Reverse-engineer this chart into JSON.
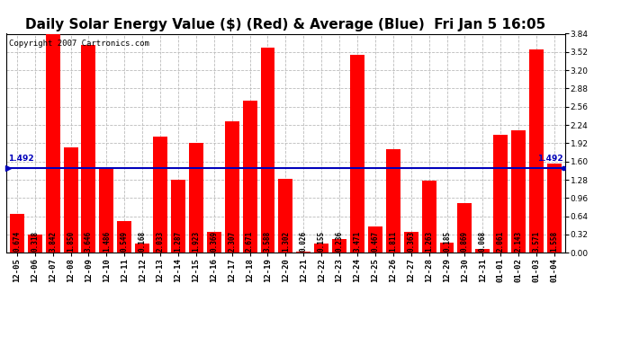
{
  "title": "Daily Solar Energy Value ($) (Red) & Average (Blue)  Fri Jan 5 16:05",
  "copyright": "Copyright 2007 Cartronics.com",
  "average": 1.492,
  "average_label": "1.492",
  "ylim": [
    0,
    3.84
  ],
  "yticks": [
    0.0,
    0.32,
    0.64,
    0.96,
    1.28,
    1.6,
    1.92,
    2.24,
    2.56,
    2.88,
    3.2,
    3.52,
    3.84
  ],
  "bar_color": "#FF0000",
  "avg_line_color": "#0000BB",
  "bg_color": "#FFFFFF",
  "plot_bg_color": "#FFFFFF",
  "grid_color": "#BBBBBB",
  "categories": [
    "12-05",
    "12-06",
    "12-07",
    "12-08",
    "12-09",
    "12-10",
    "12-11",
    "12-12",
    "12-13",
    "12-14",
    "12-15",
    "12-16",
    "12-17",
    "12-18",
    "12-19",
    "12-20",
    "12-21",
    "12-22",
    "12-23",
    "12-24",
    "12-25",
    "12-26",
    "12-27",
    "12-28",
    "12-29",
    "12-30",
    "12-31",
    "01-01",
    "01-02",
    "01-03",
    "01-04"
  ],
  "values": [
    0.674,
    0.318,
    3.842,
    1.85,
    3.646,
    1.486,
    0.549,
    0.168,
    2.033,
    1.287,
    1.923,
    0.369,
    2.307,
    2.671,
    3.588,
    1.302,
    0.026,
    0.155,
    0.236,
    3.471,
    0.467,
    1.811,
    0.363,
    1.263,
    0.185,
    0.869,
    0.068,
    2.061,
    2.143,
    3.571,
    1.558
  ],
  "title_fontsize": 11,
  "tick_fontsize": 6.5,
  "bar_label_fontsize": 5.5,
  "copyright_fontsize": 6.5
}
